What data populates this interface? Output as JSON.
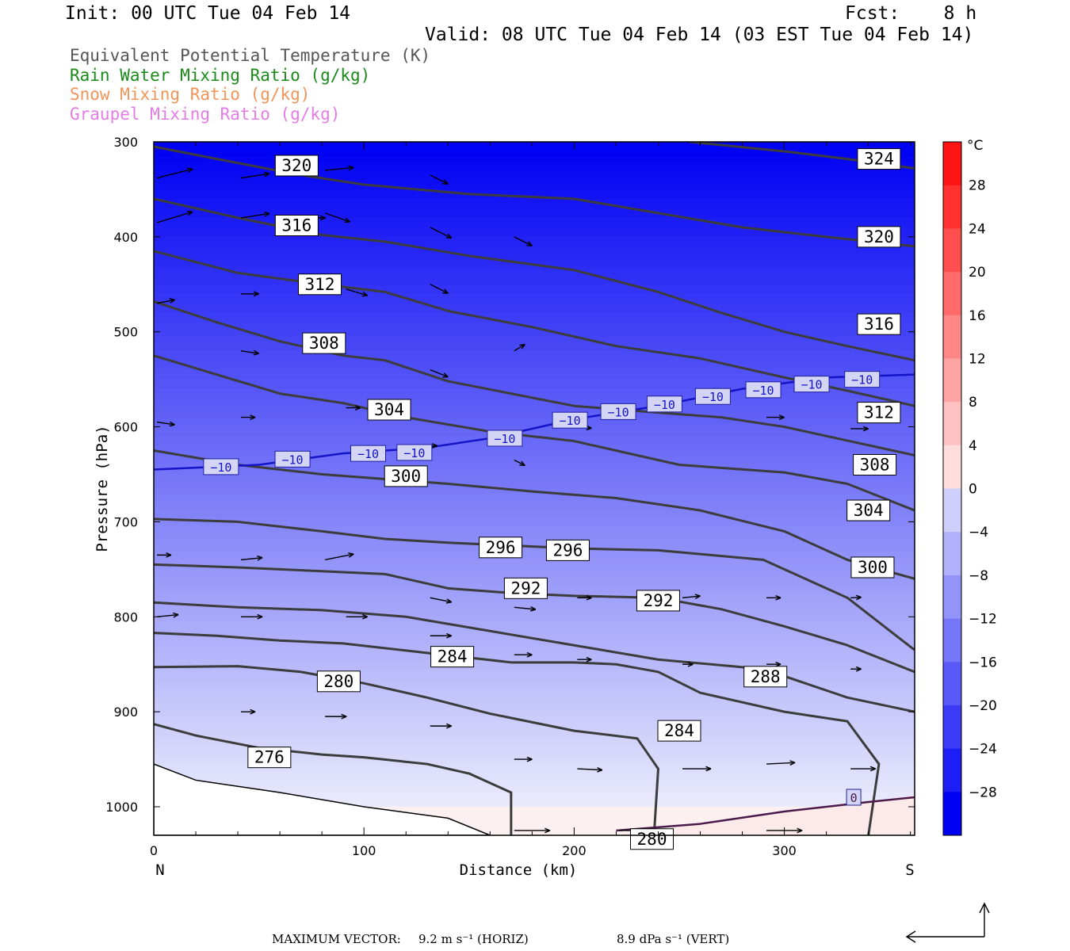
{
  "header": {
    "init": "Init: 00 UTC Tue 04 Feb 14",
    "fcst": "Fcst:    8 h",
    "valid": "Valid: 08 UTC Tue 04 Feb 14 (03 EST Tue 04 Feb 14)"
  },
  "legend": [
    {
      "label": "Equivalent Potential Temperature (K)",
      "color": "#555555"
    },
    {
      "label": "Rain Water Mixing Ratio (g/kg)",
      "color": "#1a8a1a"
    },
    {
      "label": "Snow Mixing Ratio (g/kg)",
      "color": "#f0955a"
    },
    {
      "label": "Graupel Mixing Ratio (g/kg)",
      "color": "#e47be6"
    }
  ],
  "footer": {
    "max_vector": "MAXIMUM VECTOR:",
    "horiz": "9.2 m s⁻¹ (HORIZ)",
    "vert": "8.9 dPa s⁻¹ (VERT)"
  },
  "chart_data": {
    "type": "heatmap",
    "title": "",
    "xlabel": "Distance (km)",
    "ylabel": "Pressure (hPa)",
    "xlim": [
      0,
      362
    ],
    "ylim": [
      1030,
      300
    ],
    "x_ticks": [
      0,
      100,
      200,
      300
    ],
    "y_ticks": [
      300,
      400,
      500,
      600,
      700,
      800,
      900,
      1000
    ],
    "x_end_labels": {
      "left": "N",
      "right": "S"
    },
    "colorbar": {
      "unit": "°C",
      "labels": [
        28,
        24,
        20,
        16,
        12,
        8,
        4,
        0,
        -4,
        -8,
        -12,
        -16,
        -20,
        -24,
        -28
      ],
      "top_value": 32,
      "bottom_value": -32,
      "step": 4
    },
    "theta_e_contours": [
      {
        "value": 276,
        "color": "#3c3c3c",
        "points": [
          [
            0,
            913
          ],
          [
            20,
            925
          ],
          [
            50,
            938
          ],
          [
            80,
            945
          ],
          [
            100,
            948
          ],
          [
            130,
            955
          ],
          [
            150,
            965
          ],
          [
            170,
            985
          ],
          [
            170,
            1030
          ]
        ]
      },
      {
        "value": 280,
        "color": "#3c3c3c",
        "points": [
          [
            0,
            853
          ],
          [
            40,
            852
          ],
          [
            70,
            858
          ],
          [
            100,
            870
          ],
          [
            130,
            885
          ],
          [
            160,
            902
          ],
          [
            200,
            920
          ],
          [
            230,
            928
          ],
          [
            240,
            960
          ],
          [
            238,
            1030
          ]
        ]
      },
      {
        "value": 284,
        "color": "#3c3c3c",
        "points": [
          [
            0,
            817
          ],
          [
            30,
            820
          ],
          [
            60,
            825
          ],
          [
            90,
            828
          ],
          [
            130,
            838
          ],
          [
            170,
            848
          ],
          [
            200,
            848
          ],
          [
            220,
            850
          ],
          [
            240,
            858
          ],
          [
            260,
            880
          ],
          [
            300,
            900
          ],
          [
            330,
            910
          ],
          [
            345,
            955
          ],
          [
            340,
            1030
          ]
        ]
      },
      {
        "value": 288,
        "color": "#3c3c3c",
        "points": [
          [
            0,
            785
          ],
          [
            40,
            790
          ],
          [
            80,
            793
          ],
          [
            120,
            800
          ],
          [
            160,
            815
          ],
          [
            200,
            830
          ],
          [
            240,
            845
          ],
          [
            290,
            855
          ],
          [
            330,
            885
          ],
          [
            362,
            900
          ]
        ]
      },
      {
        "value": 292,
        "color": "#3c3c3c",
        "points": [
          [
            0,
            745
          ],
          [
            40,
            748
          ],
          [
            80,
            752
          ],
          [
            110,
            755
          ],
          [
            140,
            770
          ],
          [
            170,
            775
          ],
          [
            200,
            778
          ],
          [
            240,
            780
          ],
          [
            270,
            792
          ],
          [
            300,
            810
          ],
          [
            330,
            830
          ],
          [
            362,
            858
          ]
        ]
      },
      {
        "value": 296,
        "color": "#3c3c3c",
        "points": [
          [
            0,
            697
          ],
          [
            40,
            700
          ],
          [
            80,
            710
          ],
          [
            110,
            718
          ],
          [
            140,
            722
          ],
          [
            170,
            725
          ],
          [
            200,
            728
          ],
          [
            240,
            730
          ],
          [
            290,
            740
          ],
          [
            330,
            780
          ],
          [
            362,
            835
          ]
        ]
      },
      {
        "value": 300,
        "color": "#3c3c3c",
        "points": [
          [
            0,
            625
          ],
          [
            40,
            640
          ],
          [
            80,
            650
          ],
          [
            110,
            655
          ],
          [
            140,
            660
          ],
          [
            180,
            668
          ],
          [
            220,
            675
          ],
          [
            260,
            688
          ],
          [
            300,
            710
          ],
          [
            330,
            740
          ],
          [
            362,
            760
          ]
        ]
      },
      {
        "value": 304,
        "color": "#3c3c3c",
        "points": [
          [
            0,
            525
          ],
          [
            30,
            545
          ],
          [
            60,
            565
          ],
          [
            90,
            575
          ],
          [
            120,
            590
          ],
          [
            160,
            605
          ],
          [
            200,
            615
          ],
          [
            250,
            640
          ],
          [
            300,
            648
          ],
          [
            330,
            660
          ],
          [
            362,
            688
          ]
        ]
      },
      {
        "value": 308,
        "color": "#3c3c3c",
        "points": [
          [
            0,
            468
          ],
          [
            30,
            490
          ],
          [
            60,
            510
          ],
          [
            90,
            525
          ],
          [
            110,
            530
          ],
          [
            140,
            552
          ],
          [
            170,
            565
          ],
          [
            200,
            578
          ],
          [
            240,
            585
          ],
          [
            270,
            590
          ],
          [
            300,
            600
          ],
          [
            362,
            630
          ]
        ]
      },
      {
        "value": 312,
        "color": "#3c3c3c",
        "points": [
          [
            0,
            415
          ],
          [
            40,
            438
          ],
          [
            80,
            450
          ],
          [
            110,
            458
          ],
          [
            140,
            478
          ],
          [
            180,
            495
          ],
          [
            220,
            515
          ],
          [
            260,
            528
          ],
          [
            300,
            548
          ],
          [
            330,
            562
          ],
          [
            362,
            578
          ]
        ]
      },
      {
        "value": 316,
        "color": "#3c3c3c",
        "points": [
          [
            0,
            360
          ],
          [
            40,
            380
          ],
          [
            80,
            398
          ],
          [
            110,
            405
          ],
          [
            150,
            420
          ],
          [
            200,
            435
          ],
          [
            240,
            458
          ],
          [
            270,
            480
          ],
          [
            300,
            500
          ],
          [
            330,
            515
          ],
          [
            362,
            530
          ]
        ]
      },
      {
        "value": 320,
        "color": "#3c3c3c",
        "points": [
          [
            0,
            305
          ],
          [
            30,
            318
          ],
          [
            70,
            335
          ],
          [
            100,
            345
          ],
          [
            150,
            355
          ],
          [
            200,
            360
          ],
          [
            240,
            375
          ],
          [
            280,
            390
          ],
          [
            320,
            400
          ],
          [
            362,
            410
          ]
        ]
      },
      {
        "value": 324,
        "color": "#3c3c3c",
        "points": [
          [
            255,
            300
          ],
          [
            300,
            310
          ],
          [
            330,
            318
          ],
          [
            362,
            328
          ]
        ]
      }
    ],
    "temp_contours": [
      {
        "value": -10,
        "color": "#1414c8",
        "points": [
          [
            0,
            645
          ],
          [
            50,
            640
          ],
          [
            90,
            628
          ],
          [
            130,
            622
          ],
          [
            160,
            612
          ],
          [
            200,
            592
          ],
          [
            240,
            578
          ],
          [
            280,
            560
          ],
          [
            320,
            548
          ],
          [
            362,
            545
          ]
        ]
      },
      {
        "value": 0,
        "color": "#4a1a4a",
        "points": [
          [
            220,
            1025
          ],
          [
            260,
            1018
          ],
          [
            300,
            1005
          ],
          [
            340,
            995
          ],
          [
            362,
            990
          ]
        ]
      }
    ],
    "contour_labels": [
      {
        "text": "320",
        "x": 68,
        "p": 325
      },
      {
        "text": "316",
        "x": 68,
        "p": 388
      },
      {
        "text": "312",
        "x": 79,
        "p": 450
      },
      {
        "text": "308",
        "x": 81,
        "p": 512
      },
      {
        "text": "304",
        "x": 112,
        "p": 582
      },
      {
        "text": "300",
        "x": 120,
        "p": 652
      },
      {
        "text": "296",
        "x": 165,
        "p": 727
      },
      {
        "text": "296",
        "x": 197,
        "p": 730
      },
      {
        "text": "292",
        "x": 177,
        "p": 770
      },
      {
        "text": "292",
        "x": 240,
        "p": 783
      },
      {
        "text": "284",
        "x": 142,
        "p": 842
      },
      {
        "text": "288",
        "x": 291,
        "p": 863
      },
      {
        "text": "280",
        "x": 88,
        "p": 868
      },
      {
        "text": "284",
        "x": 250,
        "p": 920
      },
      {
        "text": "276",
        "x": 55,
        "p": 948
      },
      {
        "text": "280",
        "x": 237,
        "p": 1034
      },
      {
        "text": "324",
        "x": 345,
        "p": 318
      },
      {
        "text": "320",
        "x": 345,
        "p": 400
      },
      {
        "text": "316",
        "x": 345,
        "p": 492
      },
      {
        "text": "312",
        "x": 345,
        "p": 585
      },
      {
        "text": "308",
        "x": 343,
        "p": 640
      },
      {
        "text": "304",
        "x": 340,
        "p": 688
      },
      {
        "text": "300",
        "x": 342,
        "p": 748
      }
    ],
    "temp_labels": [
      {
        "text": "−10",
        "x": 32,
        "p": 642
      },
      {
        "text": "−10",
        "x": 66,
        "p": 634
      },
      {
        "text": "−10",
        "x": 102,
        "p": 628
      },
      {
        "text": "−10",
        "x": 124,
        "p": 627
      },
      {
        "text": "−10",
        "x": 167,
        "p": 612
      },
      {
        "text": "−10",
        "x": 198,
        "p": 593
      },
      {
        "text": "−10",
        "x": 221,
        "p": 584
      },
      {
        "text": "−10",
        "x": 243,
        "p": 576
      },
      {
        "text": "−10",
        "x": 266,
        "p": 568
      },
      {
        "text": "−10",
        "x": 290,
        "p": 561
      },
      {
        "text": "−10",
        "x": 313,
        "p": 555
      },
      {
        "text": "−10",
        "x": 337,
        "p": 550
      },
      {
        "text": "0",
        "x": 333,
        "p": 990
      }
    ],
    "vectors": [
      [
        0,
        338,
        10,
        -0.5
      ],
      [
        40,
        338,
        8,
        -0.3
      ],
      [
        80,
        330,
        8,
        -0.2
      ],
      [
        130,
        335,
        5,
        1
      ],
      [
        0,
        385,
        10,
        -0.6
      ],
      [
        40,
        380,
        8,
        -0.3
      ],
      [
        70,
        380,
        6,
        0
      ],
      [
        80,
        375,
        7,
        0.7
      ],
      [
        130,
        390,
        6,
        1
      ],
      [
        170,
        400,
        5,
        1
      ],
      [
        0,
        470,
        5,
        -0.4
      ],
      [
        40,
        460,
        5,
        0
      ],
      [
        90,
        455,
        6,
        0.6
      ],
      [
        130,
        450,
        5,
        1
      ],
      [
        40,
        520,
        5,
        0.3
      ],
      [
        80,
        510,
        5,
        1
      ],
      [
        130,
        540,
        5,
        0.8
      ],
      [
        170,
        520,
        3,
        -1.2
      ],
      [
        0,
        595,
        5,
        0.3
      ],
      [
        40,
        590,
        4,
        0
      ],
      [
        90,
        580,
        4,
        0
      ],
      [
        130,
        620,
        2,
        0
      ],
      [
        170,
        635,
        3,
        1
      ],
      [
        200,
        600,
        4,
        0.2
      ],
      [
        240,
        580,
        4,
        0.1
      ],
      [
        290,
        590,
        5,
        0
      ],
      [
        330,
        602,
        5,
        0
      ],
      [
        0,
        735,
        4,
        0
      ],
      [
        40,
        740,
        6,
        -0.2
      ],
      [
        80,
        740,
        8,
        -0.4
      ],
      [
        130,
        780,
        6,
        0.4
      ],
      [
        170,
        790,
        6,
        0.2
      ],
      [
        200,
        780,
        4,
        0
      ],
      [
        250,
        780,
        5,
        -0.2
      ],
      [
        290,
        780,
        4,
        0
      ],
      [
        330,
        780,
        3,
        -0.1
      ],
      [
        0,
        800,
        6,
        -0.2
      ],
      [
        40,
        800,
        6,
        0
      ],
      [
        90,
        800,
        6,
        0
      ],
      [
        130,
        820,
        6,
        0
      ],
      [
        170,
        840,
        5,
        0
      ],
      [
        200,
        845,
        4,
        0
      ],
      [
        250,
        850,
        3,
        0
      ],
      [
        290,
        850,
        4,
        0
      ],
      [
        330,
        855,
        3,
        0
      ],
      [
        40,
        900,
        4,
        0
      ],
      [
        80,
        905,
        6,
        0
      ],
      [
        130,
        915,
        6,
        0
      ],
      [
        170,
        950,
        5,
        0
      ],
      [
        200,
        960,
        7,
        0.1
      ],
      [
        250,
        960,
        8,
        0
      ],
      [
        290,
        955,
        8,
        -0.1
      ],
      [
        330,
        960,
        7,
        0
      ],
      [
        170,
        1025,
        10,
        0
      ],
      [
        220,
        1025,
        10,
        0
      ],
      [
        290,
        1025,
        10,
        0
      ]
    ]
  }
}
